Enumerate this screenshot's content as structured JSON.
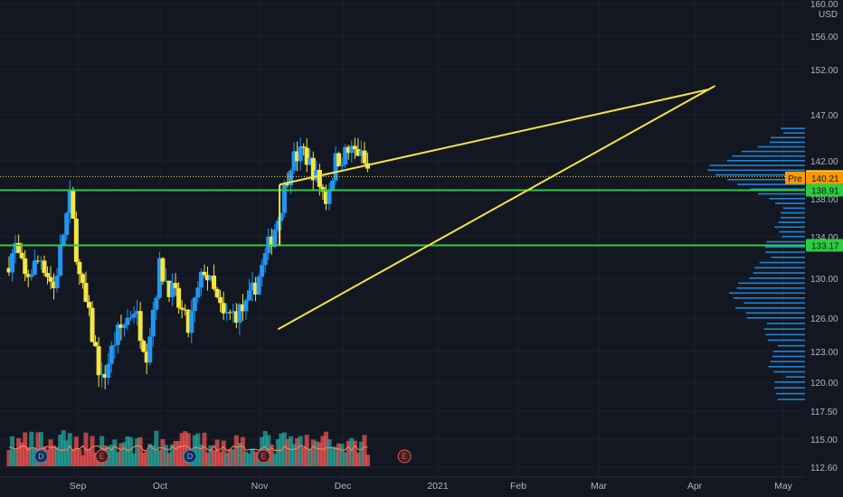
{
  "chart_data": {
    "type": "candlestick",
    "currency": "USD",
    "y_axis_ticks": [
      "160.00",
      "156.00",
      "152.00",
      "147.00",
      "142.00",
      "138.00",
      "134.00",
      "130.00",
      "126.00",
      "123.00",
      "120.00",
      "117.50",
      "115.00",
      "112.60"
    ],
    "x_axis_ticks": [
      "Sep",
      "Oct",
      "Nov",
      "Dec",
      "2021",
      "Feb",
      "Mar",
      "Apr",
      "May"
    ],
    "price_labels": [
      {
        "label": "",
        "value": "140.34",
        "bg": "#f5e642",
        "fg": "#131722"
      },
      {
        "label": "Pre",
        "value": "140.21",
        "bg": "#ff9800",
        "fg": "#131722"
      },
      {
        "label": "",
        "value": "138.91",
        "bg": "#2ecc40",
        "fg": "#131722"
      },
      {
        "label": "",
        "value": "133.17",
        "bg": "#2ecc40",
        "fg": "#131722"
      }
    ],
    "horizontal_lines": [
      {
        "y": 140.34,
        "color": "#f5e642",
        "style": "dotted"
      },
      {
        "y": 138.91,
        "color": "#2ecc40",
        "style": "solid"
      },
      {
        "y": 133.17,
        "color": "#2ecc40",
        "style": "solid"
      }
    ],
    "events": [
      {
        "label": "D",
        "x_day": 20
      },
      {
        "label": "E",
        "x_day": 58
      },
      {
        "label": "D",
        "x_day": 113
      },
      {
        "label": "E",
        "x_day": 159
      },
      {
        "label": "E",
        "x_day": 247
      }
    ],
    "candle_colors": {
      "up": "#2196f3",
      "down": "#f5e642"
    },
    "volume_colors": {
      "up": "#26a69a",
      "down": "#ef5350",
      "ma": "#ff8a65"
    },
    "trendlines_color": "#f5e642",
    "level_line_color": "#2ecc40"
  }
}
